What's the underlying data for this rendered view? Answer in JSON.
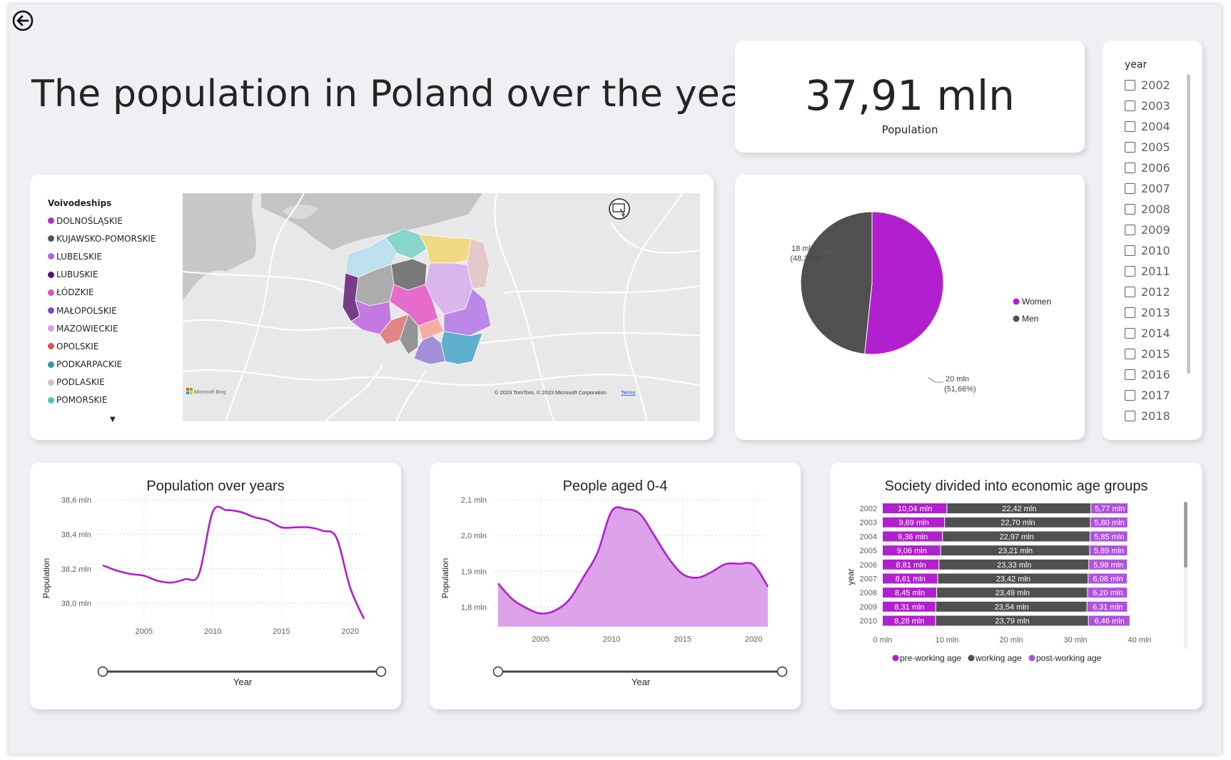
{
  "title": "The population in Poland over the years",
  "kpi": {
    "value": "37,91 mln",
    "label": "Population"
  },
  "slicer": {
    "title": "year",
    "years": [
      "2002",
      "2003",
      "2004",
      "2005",
      "2006",
      "2007",
      "2008",
      "2009",
      "2010",
      "2011",
      "2012",
      "2013",
      "2014",
      "2015",
      "2016",
      "2017",
      "2018"
    ]
  },
  "map": {
    "legend_title": "Voivodeships",
    "legend": [
      {
        "name": "DOLNOŚLĄSKIE",
        "color": "#b12fc9"
      },
      {
        "name": "KUJAWSKO-POMORSKIE",
        "color": "#555555"
      },
      {
        "name": "LUBELSKIE",
        "color": "#b462e6"
      },
      {
        "name": "LUBUSKIE",
        "color": "#5b0f6e"
      },
      {
        "name": "ŁÓDZKIE",
        "color": "#e04fbf"
      },
      {
        "name": "MAŁOPOLSKIE",
        "color": "#7a4fc4"
      },
      {
        "name": "MAZOWIECKIE",
        "color": "#d39be8"
      },
      {
        "name": "OPOLSKIE",
        "color": "#d9534f"
      },
      {
        "name": "PODKARPACKIE",
        "color": "#2f95b5"
      },
      {
        "name": "PODLASKIE",
        "color": "#dcbcbc"
      },
      {
        "name": "POMORSKIE",
        "color": "#4fc7b8"
      }
    ],
    "more_icon": "chevron-down-icon",
    "attribution_left": "Microsoft Bing",
    "attribution_right": "© 2023 TomTom, © 2023 Microsoft Corporation",
    "terms": "Terms"
  },
  "gender_pie": {
    "legend": [
      {
        "name": "Women",
        "color": "#b11fcf"
      },
      {
        "name": "Men",
        "color": "#505050"
      }
    ],
    "labels": {
      "men": {
        "value": "18 mln",
        "pct": "(48,34%)"
      },
      "women": {
        "value": "20 mln",
        "pct": "(51,66%)"
      }
    }
  },
  "population_chart": {
    "title": "Population over years",
    "xlabel": "Year",
    "ylabel": "Population",
    "color": "#b11fcf"
  },
  "kids_chart": {
    "title": "People aged 0-4",
    "xlabel": "Year",
    "ylabel": "Population",
    "color": "#b11fcf"
  },
  "age_chart": {
    "title": "Society divided into economic age groups",
    "ylabel": "year",
    "colors": {
      "pre": "#b11fcf",
      "working": "#505050",
      "post": "#b050e0"
    }
  },
  "chart_data": [
    {
      "type": "line",
      "title": "Population over years",
      "xlabel": "Year",
      "ylabel": "Population",
      "x": [
        2002,
        2003,
        2004,
        2005,
        2006,
        2007,
        2008,
        2009,
        2010,
        2011,
        2012,
        2013,
        2014,
        2015,
        2016,
        2017,
        2018,
        2019,
        2020,
        2021
      ],
      "series": [
        {
          "values": [
            38.22,
            38.19,
            38.17,
            38.16,
            38.13,
            38.12,
            38.14,
            38.17,
            38.53,
            38.54,
            38.53,
            38.5,
            38.48,
            38.44,
            38.44,
            38.44,
            38.42,
            38.38,
            38.09,
            37.91
          ]
        }
      ],
      "ylim": [
        37.91,
        38.6
      ],
      "yticks": [
        "38,0 mln",
        "38,2 mln",
        "38,4 mln",
        "38,6 mln"
      ],
      "xticks": [
        "2005",
        "2010",
        "2015",
        "2020"
      ]
    },
    {
      "type": "area",
      "title": "People aged 0-4",
      "xlabel": "Year",
      "ylabel": "Population",
      "x": [
        2002,
        2003,
        2004,
        2005,
        2006,
        2007,
        2008,
        2009,
        2010,
        2011,
        2012,
        2013,
        2014,
        2015,
        2016,
        2017,
        2018,
        2019,
        2020,
        2021
      ],
      "series": [
        {
          "values": [
            1.866,
            1.822,
            1.797,
            1.782,
            1.79,
            1.82,
            1.883,
            1.952,
            2.068,
            2.074,
            2.06,
            2.0,
            1.937,
            1.892,
            1.882,
            1.897,
            1.92,
            1.921,
            1.918,
            1.857
          ]
        }
      ],
      "ylim": [
        1.745,
        2.1
      ],
      "yticks": [
        "1,8 mln",
        "1,9 mln",
        "2,0 mln",
        "2,1 mln"
      ],
      "xticks": [
        "2005",
        "2010",
        "2015",
        "2020"
      ]
    },
    {
      "type": "bar",
      "stacked": true,
      "orientation": "horizontal",
      "title": "Society divided into economic age groups",
      "ylabel": "year",
      "categories": [
        "2002",
        "2003",
        "2004",
        "2005",
        "2006",
        "2007",
        "2008",
        "2009",
        "2010"
      ],
      "series": [
        {
          "name": "pre-working age",
          "values": [
            10.04,
            9.69,
            9.36,
            9.06,
            8.81,
            8.61,
            8.45,
            8.31,
            8.28
          ],
          "labels": [
            "10,04 mln",
            "9,69 mln",
            "9,36 mln",
            "9,06 mln",
            "8,81 mln",
            "8,61 mln",
            "8,45 mln",
            "8,31 mln",
            "8,28 mln"
          ]
        },
        {
          "name": "working age",
          "values": [
            22.42,
            22.7,
            22.97,
            23.21,
            23.33,
            23.42,
            23.49,
            23.54,
            23.79
          ],
          "labels": [
            "22,42 mln",
            "22,70 mln",
            "22,97 mln",
            "23,21 mln",
            "23,33 mln",
            "23,42 mln",
            "23,49 mln",
            "23,54 mln",
            "23,79 mln"
          ]
        },
        {
          "name": "post-working age",
          "values": [
            5.77,
            5.8,
            5.85,
            5.89,
            5.98,
            6.08,
            6.2,
            6.31,
            6.46
          ],
          "labels": [
            "5,77 mln",
            "5,80 mln",
            "5,85 mln",
            "5,89 mln",
            "5,98 mln",
            "6,08 mln",
            "6,20 mln",
            "6,31 mln",
            "6,46 mln"
          ]
        }
      ],
      "xlim": [
        0,
        40
      ],
      "xticks": [
        "0 mln",
        "10 mln",
        "20 mln",
        "30 mln",
        "40 mln"
      ]
    },
    {
      "type": "pie",
      "categories": [
        "Women",
        "Men"
      ],
      "values": [
        51.66,
        48.34
      ],
      "labels": [
        "20 mln (51,66%)",
        "18 mln (48,34%)"
      ]
    }
  ]
}
